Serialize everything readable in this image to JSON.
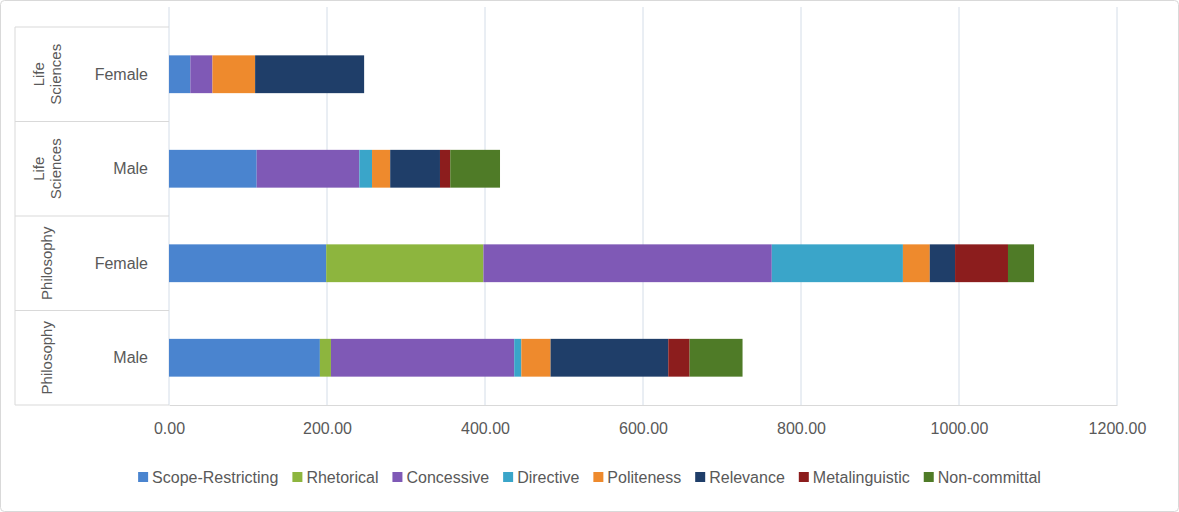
{
  "chart_data": {
    "type": "bar",
    "orientation": "horizontal",
    "stacked": true,
    "grid": true,
    "legend": "bottom",
    "groups": [
      "Life Sciences",
      "Life Sciences",
      "Philosophy",
      "Philosophy"
    ],
    "categories": [
      "Female",
      "Male",
      "Female",
      "Male"
    ],
    "xlim": [
      0,
      1200
    ],
    "xticks": [
      {
        "value": 0,
        "label": "0.00"
      },
      {
        "value": 200,
        "label": "200.00"
      },
      {
        "value": 400,
        "label": "400.00"
      },
      {
        "value": 600,
        "label": "600.00"
      },
      {
        "value": 800,
        "label": "800.00"
      },
      {
        "value": 1000,
        "label": "1000.00"
      },
      {
        "value": 1200,
        "label": "1200.00"
      }
    ],
    "series": [
      {
        "name": "Scope-Restricting",
        "color": "#4a84cf",
        "values": [
          27,
          111,
          199,
          191
        ]
      },
      {
        "name": "Rhetorical",
        "color": "#8db53e",
        "values": [
          0,
          0,
          199,
          14
        ]
      },
      {
        "name": "Concessive",
        "color": "#7f59b6",
        "values": [
          28,
          130,
          365,
          232
        ]
      },
      {
        "name": "Directive",
        "color": "#3aa5c9",
        "values": [
          0,
          16,
          166,
          9
        ]
      },
      {
        "name": "Politeness",
        "color": "#ee8a2d",
        "values": [
          54,
          23,
          34,
          37
        ]
      },
      {
        "name": "Relevance",
        "color": "#1f3e69",
        "values": [
          138,
          63,
          32,
          149
        ]
      },
      {
        "name": "Metalinguistic",
        "color": "#8c1d1d",
        "values": [
          0,
          13,
          67,
          27
        ]
      },
      {
        "name": "Non-committal",
        "color": "#4f7b27",
        "values": [
          0,
          63,
          33,
          67
        ]
      }
    ]
  }
}
